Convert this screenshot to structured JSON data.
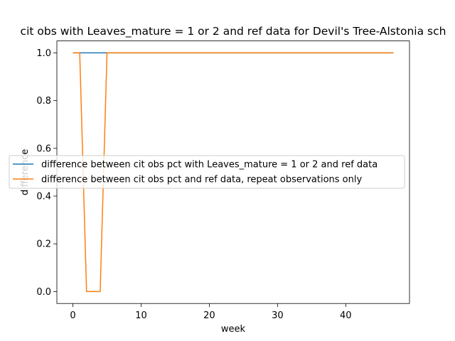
{
  "chart_data": {
    "type": "line",
    "title": "cit obs with Leaves_mature = 1 or 2 and ref data for Devil's Tree-Alstonia sch",
    "xlabel": "week",
    "ylabel": "difference",
    "xlim": [
      -2.35,
      49.35
    ],
    "ylim": [
      -0.05,
      1.05
    ],
    "xticks": [
      0,
      10,
      20,
      30,
      40
    ],
    "yticks": [
      0.0,
      0.2,
      0.4,
      0.6,
      0.8,
      1.0
    ],
    "xtick_labels": [
      "0",
      "10",
      "20",
      "30",
      "40"
    ],
    "ytick_labels": [
      "0.0",
      "0.2",
      "0.4",
      "0.6",
      "0.8",
      "1.0"
    ],
    "grid": false,
    "legend_placement": "center-left",
    "series": [
      {
        "name": "difference between cit obs pct with Leaves_mature = 1 or 2 and ref data",
        "color": "#1f77b4",
        "x": [
          0,
          47
        ],
        "y": [
          1,
          1
        ]
      },
      {
        "name": "difference between cit obs pct and ref data, repeat observations only",
        "color": "#ff7f0e",
        "x": [
          0,
          1,
          2,
          3,
          4,
          5,
          47
        ],
        "y": [
          1,
          1,
          0,
          0,
          0,
          1,
          1
        ]
      }
    ]
  }
}
